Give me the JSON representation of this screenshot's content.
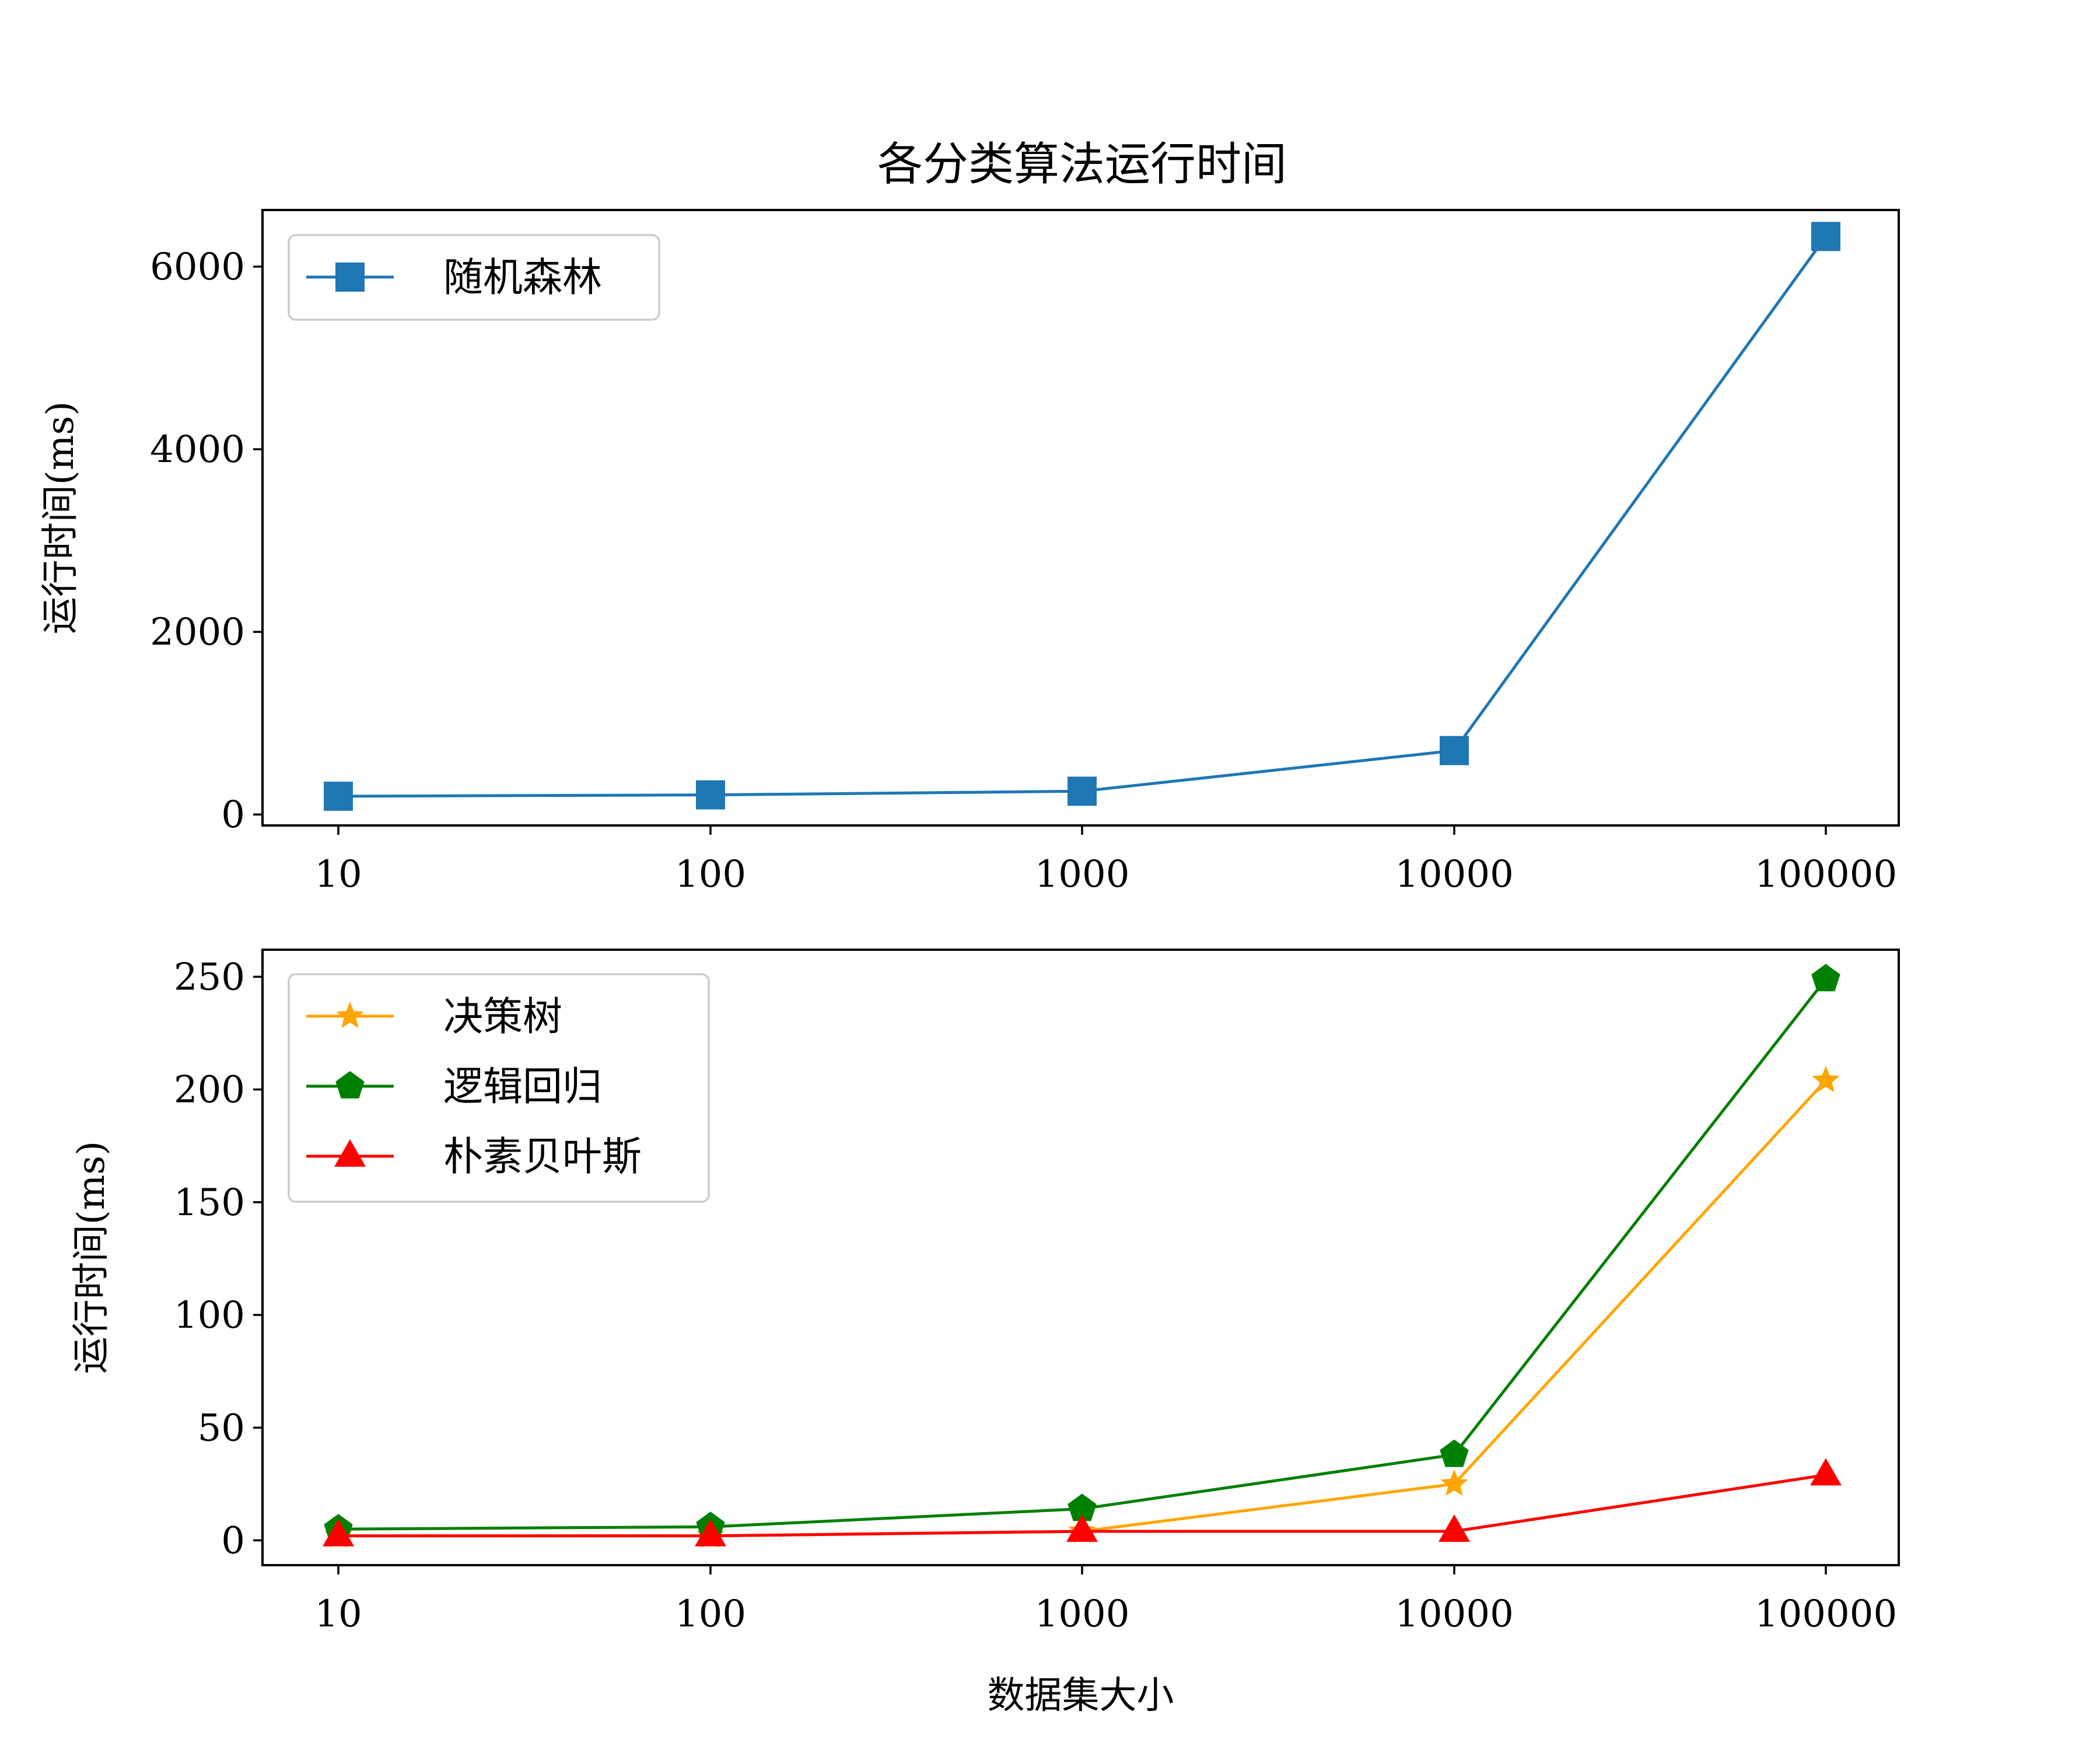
{
  "figure": {
    "title": "各分类算法运行时间"
  },
  "chart_data": [
    {
      "type": "line",
      "title": "各分类算法运行时间",
      "xlabel": "",
      "ylabel": "运行时间(ms)",
      "categories": [
        "10",
        "100",
        "1000",
        "10000",
        "100000"
      ],
      "yticks": [
        0,
        2000,
        4000,
        6000
      ],
      "ylim": [
        -120,
        6620
      ],
      "grid": false,
      "legend_position": "top-left",
      "series": [
        {
          "name": "随机森林",
          "values": [
            200,
            215,
            255,
            700,
            6330
          ],
          "color": "#1f77b4",
          "marker": "square"
        }
      ]
    },
    {
      "type": "line",
      "xlabel": "数据集大小",
      "ylabel": "运行时间(ms)",
      "categories": [
        "10",
        "100",
        "1000",
        "10000",
        "100000"
      ],
      "yticks": [
        0,
        50,
        100,
        150,
        200,
        250
      ],
      "ylim": [
        -11,
        262
      ],
      "grid": false,
      "legend_position": "top-left",
      "series": [
        {
          "name": "决策树",
          "values": [
            2,
            2,
            4,
            25,
            204
          ],
          "color": "#ffa500",
          "marker": "star"
        },
        {
          "name": "逻辑回归",
          "values": [
            5,
            6,
            14,
            38,
            249
          ],
          "color": "#008000",
          "marker": "pentagon"
        },
        {
          "name": "朴素贝叶斯",
          "values": [
            2,
            2,
            4,
            4,
            29
          ],
          "color": "#ff0000",
          "marker": "triangle"
        }
      ]
    }
  ]
}
